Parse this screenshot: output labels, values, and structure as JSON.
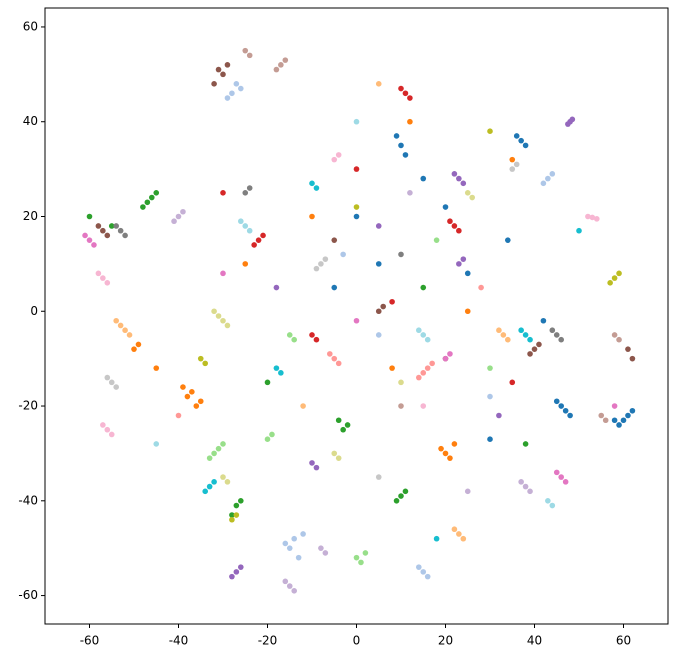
{
  "chart_data": {
    "type": "scatter",
    "xlim": [
      -70,
      70
    ],
    "ylim": [
      -66,
      64
    ],
    "xticks": [
      -60,
      -40,
      -20,
      0,
      20,
      40,
      60
    ],
    "yticks": [
      -60,
      -40,
      -20,
      0,
      20,
      40,
      60
    ],
    "grid": false,
    "series": [
      {
        "color": "#1f77b4",
        "x": [
          60,
          61,
          59,
          62,
          58,
          46,
          47,
          45,
          48,
          37,
          36,
          38,
          10,
          11,
          9,
          5,
          -5,
          20,
          30,
          0,
          15,
          25,
          34,
          42
        ],
        "y": [
          -23,
          -22,
          -24,
          -21,
          -23,
          -20,
          -21,
          -19,
          -22,
          36,
          37,
          35,
          35,
          33,
          37,
          10,
          5,
          22,
          -27,
          20,
          28,
          8,
          15,
          -2
        ]
      },
      {
        "color": "#aec7e8",
        "x": [
          -15,
          -14,
          -13,
          -16,
          -12,
          -28,
          -27,
          -29,
          -26,
          15,
          16,
          14,
          43,
          44,
          42,
          5,
          -3,
          30
        ],
        "y": [
          -50,
          -48,
          -52,
          -49,
          -47,
          46,
          48,
          45,
          47,
          -55,
          -56,
          -54,
          28,
          29,
          27,
          -5,
          12,
          -18
        ]
      },
      {
        "color": "#ff7f0e",
        "x": [
          -38,
          -37,
          -36,
          -39,
          -35,
          20,
          21,
          19,
          22,
          -50,
          -49,
          -45,
          25,
          8,
          -10,
          35,
          12,
          -25
        ],
        "y": [
          -18,
          -17,
          -20,
          -16,
          -19,
          -30,
          -31,
          -29,
          -28,
          -8,
          -7,
          -12,
          0,
          -12,
          20,
          32,
          40,
          10
        ]
      },
      {
        "color": "#ffbb78",
        "x": [
          -53,
          -52,
          -54,
          -51,
          23,
          24,
          22,
          33,
          34,
          32,
          5,
          -12
        ],
        "y": [
          -3,
          -4,
          -2,
          -5,
          -47,
          -48,
          -46,
          -5,
          -6,
          -4,
          48,
          -20
        ]
      },
      {
        "color": "#2ca02c",
        "x": [
          -47,
          -46,
          -48,
          -45,
          -27,
          -26,
          -28,
          10,
          11,
          9,
          -3,
          -2,
          -4,
          -55,
          -60,
          15,
          -20,
          38
        ],
        "y": [
          23,
          24,
          22,
          25,
          -41,
          -40,
          -43,
          -39,
          -38,
          -40,
          -25,
          -24,
          -23,
          18,
          20,
          5,
          -15,
          -28
        ]
      },
      {
        "color": "#98df8a",
        "x": [
          -32,
          -31,
          -33,
          -30,
          0,
          1,
          2,
          -20,
          -19,
          -15,
          -14,
          18,
          30
        ],
        "y": [
          -30,
          -29,
          -31,
          -28,
          -52,
          -53,
          -51,
          -27,
          -26,
          -5,
          -6,
          15,
          -12
        ]
      },
      {
        "color": "#d62728",
        "x": [
          -22,
          -21,
          -23,
          10,
          11,
          12,
          22,
          23,
          21,
          -10,
          -9,
          0,
          8,
          -30,
          35
        ],
        "y": [
          15,
          16,
          14,
          47,
          46,
          45,
          18,
          17,
          19,
          -5,
          -6,
          30,
          2,
          25,
          -15
        ]
      },
      {
        "color": "#ff9896",
        "x": [
          15,
          16,
          14,
          17,
          -5,
          -4,
          -6,
          28,
          -40
        ],
        "y": [
          -13,
          -12,
          -14,
          -11,
          -10,
          -11,
          -9,
          5,
          -22
        ]
      },
      {
        "color": "#9467bd",
        "x": [
          -27,
          -26,
          -28,
          23,
          24,
          22,
          23,
          24,
          -10,
          -9,
          48,
          48.5,
          47.5,
          5,
          -18,
          32
        ],
        "y": [
          -55,
          -54,
          -56,
          28,
          27,
          29,
          10,
          11,
          -32,
          -33,
          40,
          40.5,
          39.5,
          18,
          5,
          -22
        ]
      },
      {
        "color": "#c5b0d5",
        "x": [
          -15,
          -14,
          -16,
          -40,
          -39,
          -41,
          38,
          39,
          37,
          -8,
          -7,
          12,
          25
        ],
        "y": [
          -58,
          -59,
          -57,
          20,
          21,
          19,
          -37,
          -38,
          -36,
          -50,
          -51,
          25,
          -38
        ]
      },
      {
        "color": "#8c564b",
        "x": [
          -30,
          -29,
          -31,
          -32,
          -57,
          -56,
          -58,
          62,
          61,
          40,
          41,
          39,
          5,
          6,
          20,
          -5
        ],
        "y": [
          50,
          52,
          51,
          48,
          17,
          16,
          18,
          -10,
          -8,
          -8,
          -7,
          -9,
          0,
          1,
          -10,
          15
        ]
      },
      {
        "color": "#c49c94",
        "x": [
          -17,
          -18,
          -16,
          -25,
          -24,
          55,
          56,
          58,
          59,
          10
        ],
        "y": [
          52,
          51,
          53,
          55,
          54,
          -22,
          -23,
          -5,
          -6,
          -20
        ]
      },
      {
        "color": "#e377c2",
        "x": [
          -60,
          -59,
          -61,
          46,
          47,
          45,
          58,
          20,
          21,
          0,
          -30
        ],
        "y": [
          15,
          14,
          16,
          -35,
          -36,
          -34,
          -20,
          -10,
          -9,
          -2,
          8
        ]
      },
      {
        "color": "#f7b6d2",
        "x": [
          -56,
          -55,
          -57,
          -57,
          -56,
          -58,
          52,
          53,
          54,
          -5,
          -4,
          15
        ],
        "y": [
          -25,
          -26,
          -24,
          7,
          6,
          8,
          20,
          19.8,
          19.5,
          32,
          33,
          -20
        ]
      },
      {
        "color": "#7f7f7f",
        "x": [
          -53,
          -52,
          -54,
          45,
          46,
          44,
          -25,
          -24,
          10
        ],
        "y": [
          17,
          16,
          18,
          -5,
          -6,
          -4,
          25,
          26,
          12
        ]
      },
      {
        "color": "#c7c7c7",
        "x": [
          -55,
          -54,
          -56,
          -8,
          -7,
          -9,
          35,
          36,
          5
        ],
        "y": [
          -15,
          -16,
          -14,
          10,
          11,
          9,
          30,
          31,
          -35
        ]
      },
      {
        "color": "#bcbd22",
        "x": [
          58,
          59,
          57,
          -35,
          -34,
          -28,
          -27,
          30,
          0
        ],
        "y": [
          7,
          8,
          6,
          -10,
          -11,
          -44,
          -43,
          38,
          22
        ]
      },
      {
        "color": "#dbdb8d",
        "x": [
          -30,
          -29,
          -31,
          -32,
          -30,
          -29,
          -5,
          -4,
          25,
          26,
          10
        ],
        "y": [
          -2,
          -3,
          -1,
          0,
          -35,
          -36,
          -30,
          -31,
          25,
          24,
          -15
        ]
      },
      {
        "color": "#17becf",
        "x": [
          -33,
          -32,
          -34,
          38,
          39,
          37,
          -18,
          -17,
          -10,
          -9,
          18,
          50
        ],
        "y": [
          -37,
          -36,
          -38,
          -5,
          -6,
          -4,
          -12,
          -13,
          27,
          26,
          -48,
          17
        ]
      },
      {
        "color": "#9edae5",
        "x": [
          15,
          16,
          14,
          -25,
          -24,
          -26,
          43,
          44,
          0,
          -45
        ],
        "y": [
          -5,
          -6,
          -4,
          18,
          17,
          19,
          -40,
          -41,
          40,
          -28
        ]
      }
    ]
  }
}
